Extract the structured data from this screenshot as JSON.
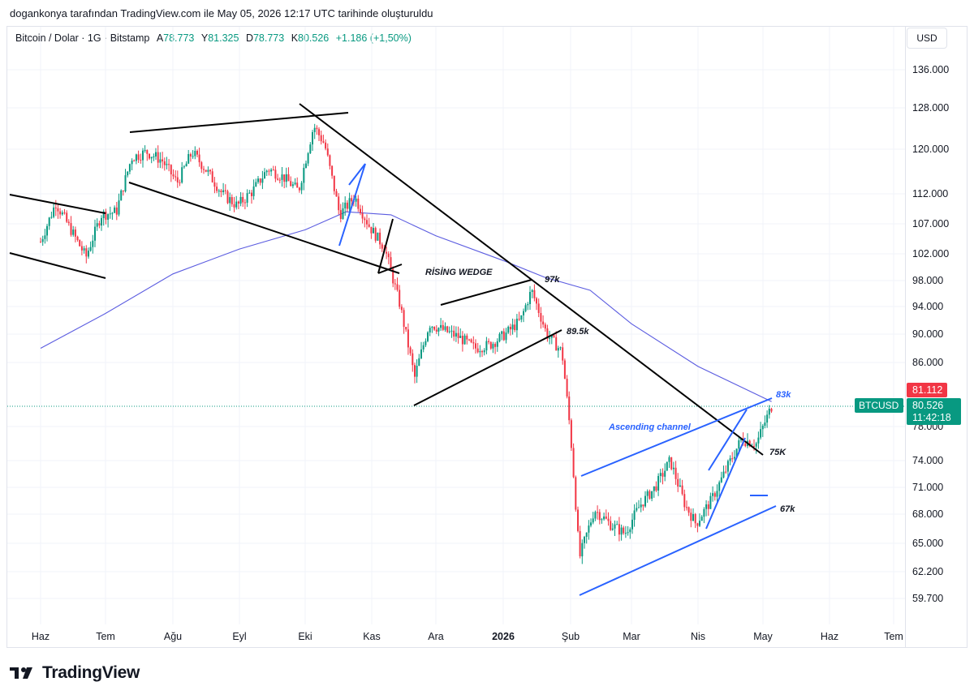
{
  "caption": "dogankonya tarafından TradingView.com ile May 05, 2026 12:17 UTC tarihinde oluşturuldu",
  "legend": {
    "symbol": "Bitcoin / Dolar · 1G · Bitstamp",
    "open_label": "A",
    "open": "78.773",
    "high_label": "Y",
    "high": "81.325",
    "low_label": "D",
    "low": "78.773",
    "close_label": "K",
    "close": "80.526",
    "change": "+1.186 (+1,50%)"
  },
  "currency": "USD",
  "brand": "TradingView",
  "colors": {
    "up": "#089981",
    "down": "#f23645",
    "ma": "#5b5ce0",
    "trend_black": "#000000",
    "trend_blue": "#2962ff",
    "annotation_blue": "#2962ff"
  },
  "chart_data": {
    "type": "candlestick",
    "symbol": "BTCUSD",
    "y_ticks": [
      "136.000",
      "128.000",
      "120.000",
      "112.000",
      "107.000",
      "102.000",
      "98.000",
      "94.000",
      "90.000",
      "86.000",
      "78.000",
      "74.000",
      "71.000",
      "68.000",
      "65.000",
      "62.200",
      "59.700"
    ],
    "x_ticks": [
      "Haz",
      "Tem",
      "Ağu",
      "Eyl",
      "Eki",
      "Kas",
      "Ara",
      "2026",
      "Şub",
      "Mar",
      "Nis",
      "May",
      "Haz",
      "Tem"
    ],
    "price_labels": [
      {
        "text": "81.112",
        "color": "#f23645"
      },
      {
        "symbol": "BTCUSD",
        "price": "80.526",
        "countdown": "11:42:18",
        "color": "#089981"
      }
    ],
    "last_price": 80526,
    "moving_average_endpoint": 81112,
    "annotations": [
      "RİSİNG WEDGE",
      "97k",
      "89.5k",
      "83k",
      "Ascending channel",
      "75K",
      "67k"
    ],
    "price_path": [
      [
        "2025-06-01",
        104000
      ],
      [
        "2025-06-08",
        110500
      ],
      [
        "2025-06-15",
        106000
      ],
      [
        "2025-06-22",
        101500
      ],
      [
        "2025-06-29",
        108500
      ],
      [
        "2025-07-06",
        109000
      ],
      [
        "2025-07-13",
        118500
      ],
      [
        "2025-07-20",
        119500
      ],
      [
        "2025-07-27",
        118000
      ],
      [
        "2025-08-03",
        114000
      ],
      [
        "2025-08-10",
        119500
      ],
      [
        "2025-08-17",
        116000
      ],
      [
        "2025-08-24",
        112000
      ],
      [
        "2025-08-31",
        110000
      ],
      [
        "2025-09-07",
        112500
      ],
      [
        "2025-09-14",
        116500
      ],
      [
        "2025-09-21",
        115000
      ],
      [
        "2025-09-28",
        112500
      ],
      [
        "2025-10-05",
        124500
      ],
      [
        "2025-10-10",
        121000
      ],
      [
        "2025-10-17",
        108500
      ],
      [
        "2025-10-24",
        111500
      ],
      [
        "2025-10-31",
        106500
      ],
      [
        "2025-11-07",
        103000
      ],
      [
        "2025-11-14",
        94500
      ],
      [
        "2025-11-21",
        84000
      ],
      [
        "2025-11-28",
        91500
      ],
      [
        "2025-12-05",
        90500
      ],
      [
        "2025-12-12",
        89500
      ],
      [
        "2025-12-19",
        88000
      ],
      [
        "2025-12-26",
        88500
      ],
      [
        "2026-01-02",
        90000
      ],
      [
        "2026-01-09",
        92000
      ],
      [
        "2026-01-14",
        96500
      ],
      [
        "2026-01-21",
        90000
      ],
      [
        "2026-01-28",
        87500
      ],
      [
        "2026-02-01",
        77000
      ],
      [
        "2026-02-05",
        63500
      ],
      [
        "2026-02-12",
        68500
      ],
      [
        "2026-02-19",
        67000
      ],
      [
        "2026-02-26",
        66000
      ],
      [
        "2026-03-05",
        69000
      ],
      [
        "2026-03-12",
        71000
      ],
      [
        "2026-03-19",
        74000
      ],
      [
        "2026-03-26",
        69000
      ],
      [
        "2026-03-31",
        67000
      ],
      [
        "2026-04-07",
        69500
      ],
      [
        "2026-04-14",
        73000
      ],
      [
        "2026-04-21",
        76500
      ],
      [
        "2026-04-28",
        76000
      ],
      [
        "2026-05-05",
        80526
      ]
    ],
    "moving_average_path": [
      [
        "2025-06-01",
        88000
      ],
      [
        "2025-07-01",
        93000
      ],
      [
        "2025-08-01",
        99000
      ],
      [
        "2025-09-01",
        102800
      ],
      [
        "2025-10-01",
        106000
      ],
      [
        "2025-10-20",
        109000
      ],
      [
        "2025-11-10",
        108500
      ],
      [
        "2025-12-01",
        105000
      ],
      [
        "2026-01-01",
        101000
      ],
      [
        "2026-01-20",
        98500
      ],
      [
        "2026-02-10",
        96500
      ],
      [
        "2026-03-01",
        91500
      ],
      [
        "2026-04-01",
        85500
      ],
      [
        "2026-05-05",
        81112
      ]
    ]
  }
}
